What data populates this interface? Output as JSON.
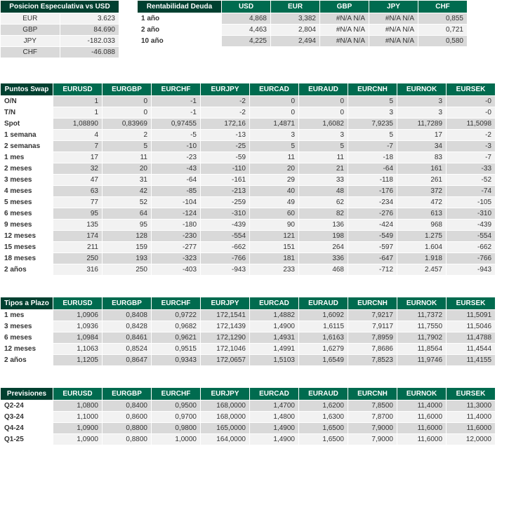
{
  "colors": {
    "header_bg": "#006b4f",
    "title_bg": "#004030",
    "odd_row": "#d9d9d9",
    "even_row": "#f2f2f2",
    "text": "#333333"
  },
  "speculative": {
    "title": "Posicion Especulativa vs USD",
    "rows": [
      {
        "label": "EUR",
        "value": "3.623"
      },
      {
        "label": "GBP",
        "value": "84.690"
      },
      {
        "label": "JPY",
        "value": "-182.033"
      },
      {
        "label": "CHF",
        "value": "-46.088"
      }
    ]
  },
  "debt": {
    "title": "Rentabilidad Deuda",
    "headers": [
      "USD",
      "EUR",
      "GBP",
      "JPY",
      "CHF"
    ],
    "rows": [
      {
        "label": "1 año",
        "vals": [
          "4,868",
          "3,382",
          "#N/A N/A",
          "#N/A N/A",
          "0,855"
        ]
      },
      {
        "label": "2 año",
        "vals": [
          "4,463",
          "2,804",
          "#N/A N/A",
          "#N/A N/A",
          "0,721"
        ]
      },
      {
        "label": "10 año",
        "vals": [
          "4,225",
          "2,494",
          "#N/A N/A",
          "#N/A N/A",
          "0,580"
        ]
      }
    ]
  },
  "swap": {
    "title": "Puntos Swap",
    "headers": [
      "EURUSD",
      "EURGBP",
      "EURCHF",
      "EURJPY",
      "EURCAD",
      "EURAUD",
      "EURCNH",
      "EURNOK",
      "EURSEK"
    ],
    "rows": [
      {
        "label": "O/N",
        "vals": [
          "1",
          "0",
          "-1",
          "-2",
          "0",
          "0",
          "5",
          "3",
          "-0"
        ]
      },
      {
        "label": "T/N",
        "vals": [
          "1",
          "0",
          "-1",
          "-2",
          "0",
          "0",
          "3",
          "3",
          "-0"
        ]
      },
      {
        "label": "Spot",
        "vals": [
          "1,08890",
          "0,83969",
          "0,97455",
          "172,16",
          "1,4871",
          "1,6082",
          "7,9235",
          "11,7289",
          "11,5098"
        ]
      },
      {
        "label": "1 semana",
        "vals": [
          "4",
          "2",
          "-5",
          "-13",
          "3",
          "3",
          "5",
          "17",
          "-2"
        ]
      },
      {
        "label": "2 semanas",
        "vals": [
          "7",
          "5",
          "-10",
          "-25",
          "5",
          "5",
          "-7",
          "34",
          "-3"
        ]
      },
      {
        "label": "1 mes",
        "vals": [
          "17",
          "11",
          "-23",
          "-59",
          "11",
          "11",
          "-18",
          "83",
          "-7"
        ]
      },
      {
        "label": "2 meses",
        "vals": [
          "32",
          "20",
          "-43",
          "-110",
          "20",
          "21",
          "-64",
          "161",
          "-33"
        ]
      },
      {
        "label": "3 meses",
        "vals": [
          "47",
          "31",
          "-64",
          "-161",
          "29",
          "33",
          "-118",
          "261",
          "-52"
        ]
      },
      {
        "label": "4 meses",
        "vals": [
          "63",
          "42",
          "-85",
          "-213",
          "40",
          "48",
          "-176",
          "372",
          "-74"
        ]
      },
      {
        "label": "5 meses",
        "vals": [
          "77",
          "52",
          "-104",
          "-259",
          "49",
          "62",
          "-234",
          "472",
          "-105"
        ]
      },
      {
        "label": "6 meses",
        "vals": [
          "95",
          "64",
          "-124",
          "-310",
          "60",
          "82",
          "-276",
          "613",
          "-310"
        ]
      },
      {
        "label": "9 meses",
        "vals": [
          "135",
          "95",
          "-180",
          "-439",
          "90",
          "136",
          "-424",
          "968",
          "-439"
        ]
      },
      {
        "label": "12 meses",
        "vals": [
          "174",
          "128",
          "-230",
          "-554",
          "121",
          "198",
          "-549",
          "1.275",
          "-554"
        ]
      },
      {
        "label": "15 meses",
        "vals": [
          "211",
          "159",
          "-277",
          "-662",
          "151",
          "264",
          "-597",
          "1.604",
          "-662"
        ]
      },
      {
        "label": "18 meses",
        "vals": [
          "250",
          "193",
          "-323",
          "-766",
          "181",
          "336",
          "-647",
          "1.918",
          "-766"
        ]
      },
      {
        "label": "2 años",
        "vals": [
          "316",
          "250",
          "-403",
          "-943",
          "233",
          "468",
          "-712",
          "2.457",
          "-943"
        ]
      }
    ]
  },
  "forward": {
    "title": "Tipos a Plazo",
    "headers": [
      "EURUSD",
      "EURGBP",
      "EURCHF",
      "EURJPY",
      "EURCAD",
      "EURAUD",
      "EURCNH",
      "EURNOK",
      "EURSEK"
    ],
    "rows": [
      {
        "label": "1 mes",
        "vals": [
          "1,0906",
          "0,8408",
          "0,9722",
          "172,1541",
          "1,4882",
          "1,6092",
          "7,9217",
          "11,7372",
          "11,5091"
        ]
      },
      {
        "label": "3 meses",
        "vals": [
          "1,0936",
          "0,8428",
          "0,9682",
          "172,1439",
          "1,4900",
          "1,6115",
          "7,9117",
          "11,7550",
          "11,5046"
        ]
      },
      {
        "label": "6 meses",
        "vals": [
          "1,0984",
          "0,8461",
          "0,9621",
          "172,1290",
          "1,4931",
          "1,6163",
          "7,8959",
          "11,7902",
          "11,4788"
        ]
      },
      {
        "label": "12 meses",
        "vals": [
          "1,1063",
          "0,8524",
          "0,9515",
          "172,1046",
          "1,4991",
          "1,6279",
          "7,8686",
          "11,8564",
          "11,4544"
        ]
      },
      {
        "label": "2 años",
        "vals": [
          "1,1205",
          "0,8647",
          "0,9343",
          "172,0657",
          "1,5103",
          "1,6549",
          "7,8523",
          "11,9746",
          "11,4155"
        ]
      }
    ]
  },
  "forecast": {
    "title": "Previsiones",
    "headers": [
      "EURUSD",
      "EURGBP",
      "EURCHF",
      "EURJPY",
      "EURCAD",
      "EURAUD",
      "EURCNH",
      "EURNOK",
      "EURSEK"
    ],
    "rows": [
      {
        "label": "Q2-24",
        "vals": [
          "1,0800",
          "0,8400",
          "0,9500",
          "168,0000",
          "1,4700",
          "1,6200",
          "7,8500",
          "11,4000",
          "11,3000"
        ]
      },
      {
        "label": "Q3-24",
        "vals": [
          "1,1000",
          "0,8600",
          "0,9700",
          "168,0000",
          "1,4800",
          "1,6300",
          "7,8700",
          "11,6000",
          "11,4000"
        ]
      },
      {
        "label": "Q4-24",
        "vals": [
          "1,0900",
          "0,8800",
          "0,9800",
          "165,0000",
          "1,4900",
          "1,6500",
          "7,9000",
          "11,6000",
          "11,6000"
        ]
      },
      {
        "label": "Q1-25",
        "vals": [
          "1,0900",
          "0,8800",
          "1,0000",
          "164,0000",
          "1,4900",
          "1,6500",
          "7,9000",
          "11,6000",
          "12,0000"
        ]
      }
    ]
  }
}
